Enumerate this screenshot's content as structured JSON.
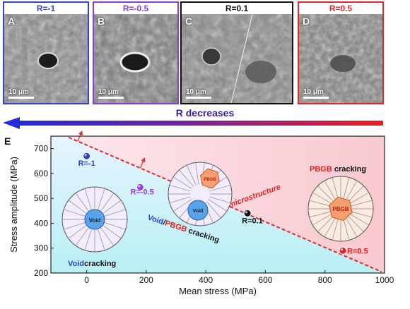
{
  "panels": [
    {
      "letter": "A",
      "title": "R=-1",
      "color": "#3545c8",
      "scale": "10 μm"
    },
    {
      "letter": "B",
      "title": "R=-0.5",
      "color": "#8a3fd0",
      "scale": "10 μm"
    },
    {
      "letter": "C",
      "title": "R=0.1",
      "color": "#111111",
      "scale": "10 μm"
    },
    {
      "letter": "D",
      "title": "R=0.5",
      "color": "#e02a2a",
      "scale": "10 μm"
    }
  ],
  "arrow_label": "R decreases",
  "panel_e_letter": "E",
  "chart_data": {
    "type": "scatter",
    "xlabel": "Mean stress (MPa)",
    "ylabel": "Stress amplitude (MPa)",
    "xlim": [
      -120,
      1000
    ],
    "ylim": [
      200,
      750
    ],
    "xticks": [
      0,
      200,
      400,
      600,
      800,
      1000
    ],
    "yticks": [
      200,
      300,
      400,
      500,
      600,
      700
    ],
    "points": [
      {
        "label": "R=-1",
        "x": 0,
        "y": 670,
        "color": "#2f3fd0"
      },
      {
        "label": "R=-0.5",
        "x": 180,
        "y": 545,
        "color": "#9a3fe0"
      },
      {
        "label": "R=0.1",
        "x": 540,
        "y": 440,
        "color": "#111111"
      },
      {
        "label": "R=0.5",
        "x": 860,
        "y": 290,
        "color": "#e02020"
      }
    ],
    "boundary_line": {
      "x": [
        -60,
        990
      ],
      "y": [
        745,
        205
      ],
      "label": "Net-AM microstructure"
    },
    "regions": [
      {
        "name": "Void cracking",
        "prefix": "Void",
        "suffix": "cracking",
        "prefix_color": "#2a3fd0"
      },
      {
        "name": "Void/PBGB cracking"
      },
      {
        "name": "PBGB cracking",
        "prefix": "PBGB",
        "suffix": "cracking",
        "prefix_color": "#e02020"
      }
    ],
    "mixed_label": {
      "a": "Void",
      "slash": "/",
      "b": "PBGB",
      "c": "cracking"
    },
    "diagram_labels": {
      "void": "Void",
      "pbgb": "PBGB"
    }
  }
}
